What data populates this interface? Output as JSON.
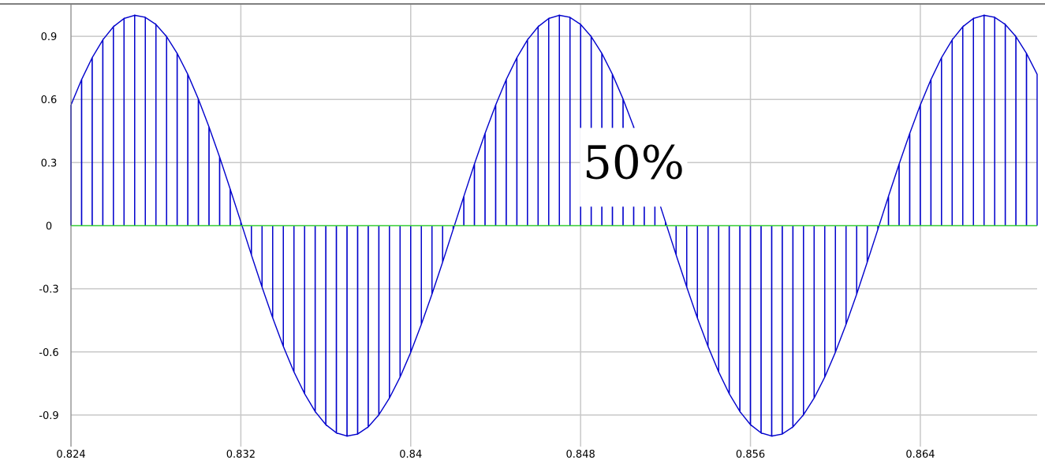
{
  "chart_data": {
    "type": "line",
    "title": "",
    "xlabel": "",
    "ylabel": "",
    "xlim": [
      0.824,
      0.8695
    ],
    "ylim": [
      -1.05,
      1.05
    ],
    "grid": true,
    "x_ticks": [
      0.824,
      0.832,
      0.84,
      0.848,
      0.856,
      0.864
    ],
    "x_tick_labels": [
      "0.824",
      "0.832",
      "0.84",
      "0.848",
      "0.856",
      "0.864"
    ],
    "y_ticks": [
      0.9,
      0.6,
      0.3,
      0,
      -0.3,
      -0.6,
      -0.9
    ],
    "y_tick_labels": [
      "0.9",
      "0.6",
      "0.3",
      "0",
      "-0.3",
      "-0.6",
      "-0.9"
    ],
    "signal": {
      "amplitude": 1.0,
      "frequency_hz": 50,
      "phase_deg": -37,
      "sample_interval": 0.0005,
      "window": "hold",
      "style": "sampled sine with vertical stems to zero"
    },
    "annotation": {
      "text": "50%",
      "x": 0.8505,
      "y": 0.3
    },
    "colors": {
      "signal": "#0000cc",
      "zero_line": "#33cc33",
      "grid": "#c8c8c8",
      "axis": "#808080",
      "top_border": "#808080"
    }
  }
}
